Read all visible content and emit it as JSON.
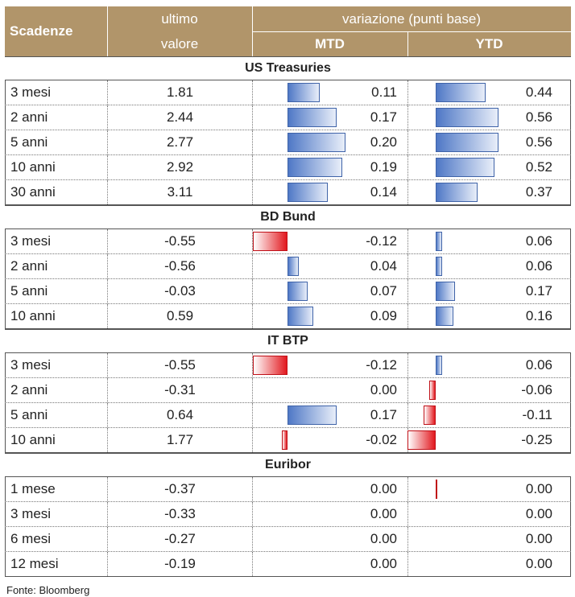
{
  "header": {
    "scadenze": "Scadenze",
    "ultimo_line1": "ultimo",
    "ultimo_line2": "valore",
    "variazione": "variazione (punti base)",
    "mtd": "MTD",
    "ytd": "YTD"
  },
  "sections": [
    {
      "title": "US Treasuries",
      "rows": [
        {
          "maturity": "3 mesi",
          "value": "1.81",
          "mtd": 0.11,
          "mtd_label": "0.11",
          "ytd": 0.44,
          "ytd_label": "0.44"
        },
        {
          "maturity": "2 anni",
          "value": "2.44",
          "mtd": 0.17,
          "mtd_label": "0.17",
          "ytd": 0.56,
          "ytd_label": "0.56"
        },
        {
          "maturity": "5 anni",
          "value": "2.77",
          "mtd": 0.2,
          "mtd_label": "0.20",
          "ytd": 0.56,
          "ytd_label": "0.56"
        },
        {
          "maturity": "10 anni",
          "value": "2.92",
          "mtd": 0.19,
          "mtd_label": "0.19",
          "ytd": 0.52,
          "ytd_label": "0.52"
        },
        {
          "maturity": "30 anni",
          "value": "3.11",
          "mtd": 0.14,
          "mtd_label": "0.14",
          "ytd": 0.37,
          "ytd_label": "0.37"
        }
      ]
    },
    {
      "title": "BD Bund",
      "rows": [
        {
          "maturity": "3 mesi",
          "value": "-0.55",
          "mtd": -0.12,
          "mtd_label": "-0.12",
          "ytd": 0.06,
          "ytd_label": "0.06"
        },
        {
          "maturity": "2 anni",
          "value": "-0.56",
          "mtd": 0.04,
          "mtd_label": "0.04",
          "ytd": 0.06,
          "ytd_label": "0.06"
        },
        {
          "maturity": "5 anni",
          "value": "-0.03",
          "mtd": 0.07,
          "mtd_label": "0.07",
          "ytd": 0.17,
          "ytd_label": "0.17"
        },
        {
          "maturity": "10 anni",
          "value": "0.59",
          "mtd": 0.09,
          "mtd_label": "0.09",
          "ytd": 0.16,
          "ytd_label": "0.16"
        }
      ]
    },
    {
      "title": "IT BTP",
      "rows": [
        {
          "maturity": "3 mesi",
          "value": "-0.55",
          "mtd": -0.12,
          "mtd_label": "-0.12",
          "ytd": 0.06,
          "ytd_label": "0.06"
        },
        {
          "maturity": "2 anni",
          "value": "-0.31",
          "mtd": 0.0,
          "mtd_label": "0.00",
          "ytd": -0.06,
          "ytd_label": "-0.06"
        },
        {
          "maturity": "5 anni",
          "value": "0.64",
          "mtd": 0.17,
          "mtd_label": "0.17",
          "ytd": -0.11,
          "ytd_label": "-0.11"
        },
        {
          "maturity": "10 anni",
          "value": "1.77",
          "mtd": -0.02,
          "mtd_label": "-0.02",
          "ytd": -0.25,
          "ytd_label": "-0.25"
        }
      ]
    },
    {
      "title": "Euribor",
      "rows": [
        {
          "maturity": "1 mese",
          "value": "-0.37",
          "mtd": 0.0,
          "mtd_label": "0.00",
          "ytd": 0.0,
          "ytd_label": "0.00"
        },
        {
          "maturity": "3 mesi",
          "value": "-0.33",
          "mtd": 0.0,
          "mtd_label": "0.00",
          "ytd": 0.0,
          "ytd_label": "0.00"
        },
        {
          "maturity": "6 mesi",
          "value": "-0.27",
          "mtd": 0.0,
          "mtd_label": "0.00",
          "ytd": 0.0,
          "ytd_label": "0.00"
        },
        {
          "maturity": "12 mesi",
          "value": "-0.19",
          "mtd": 0.0,
          "mtd_label": "0.00",
          "ytd": 0.0,
          "ytd_label": "0.00"
        }
      ]
    }
  ],
  "footer": "Fonte: Bloomberg",
  "colors": {
    "header_bg": "#b1956a",
    "positive_bar": "#4f78c6",
    "negative_bar": "#e2191f"
  }
}
